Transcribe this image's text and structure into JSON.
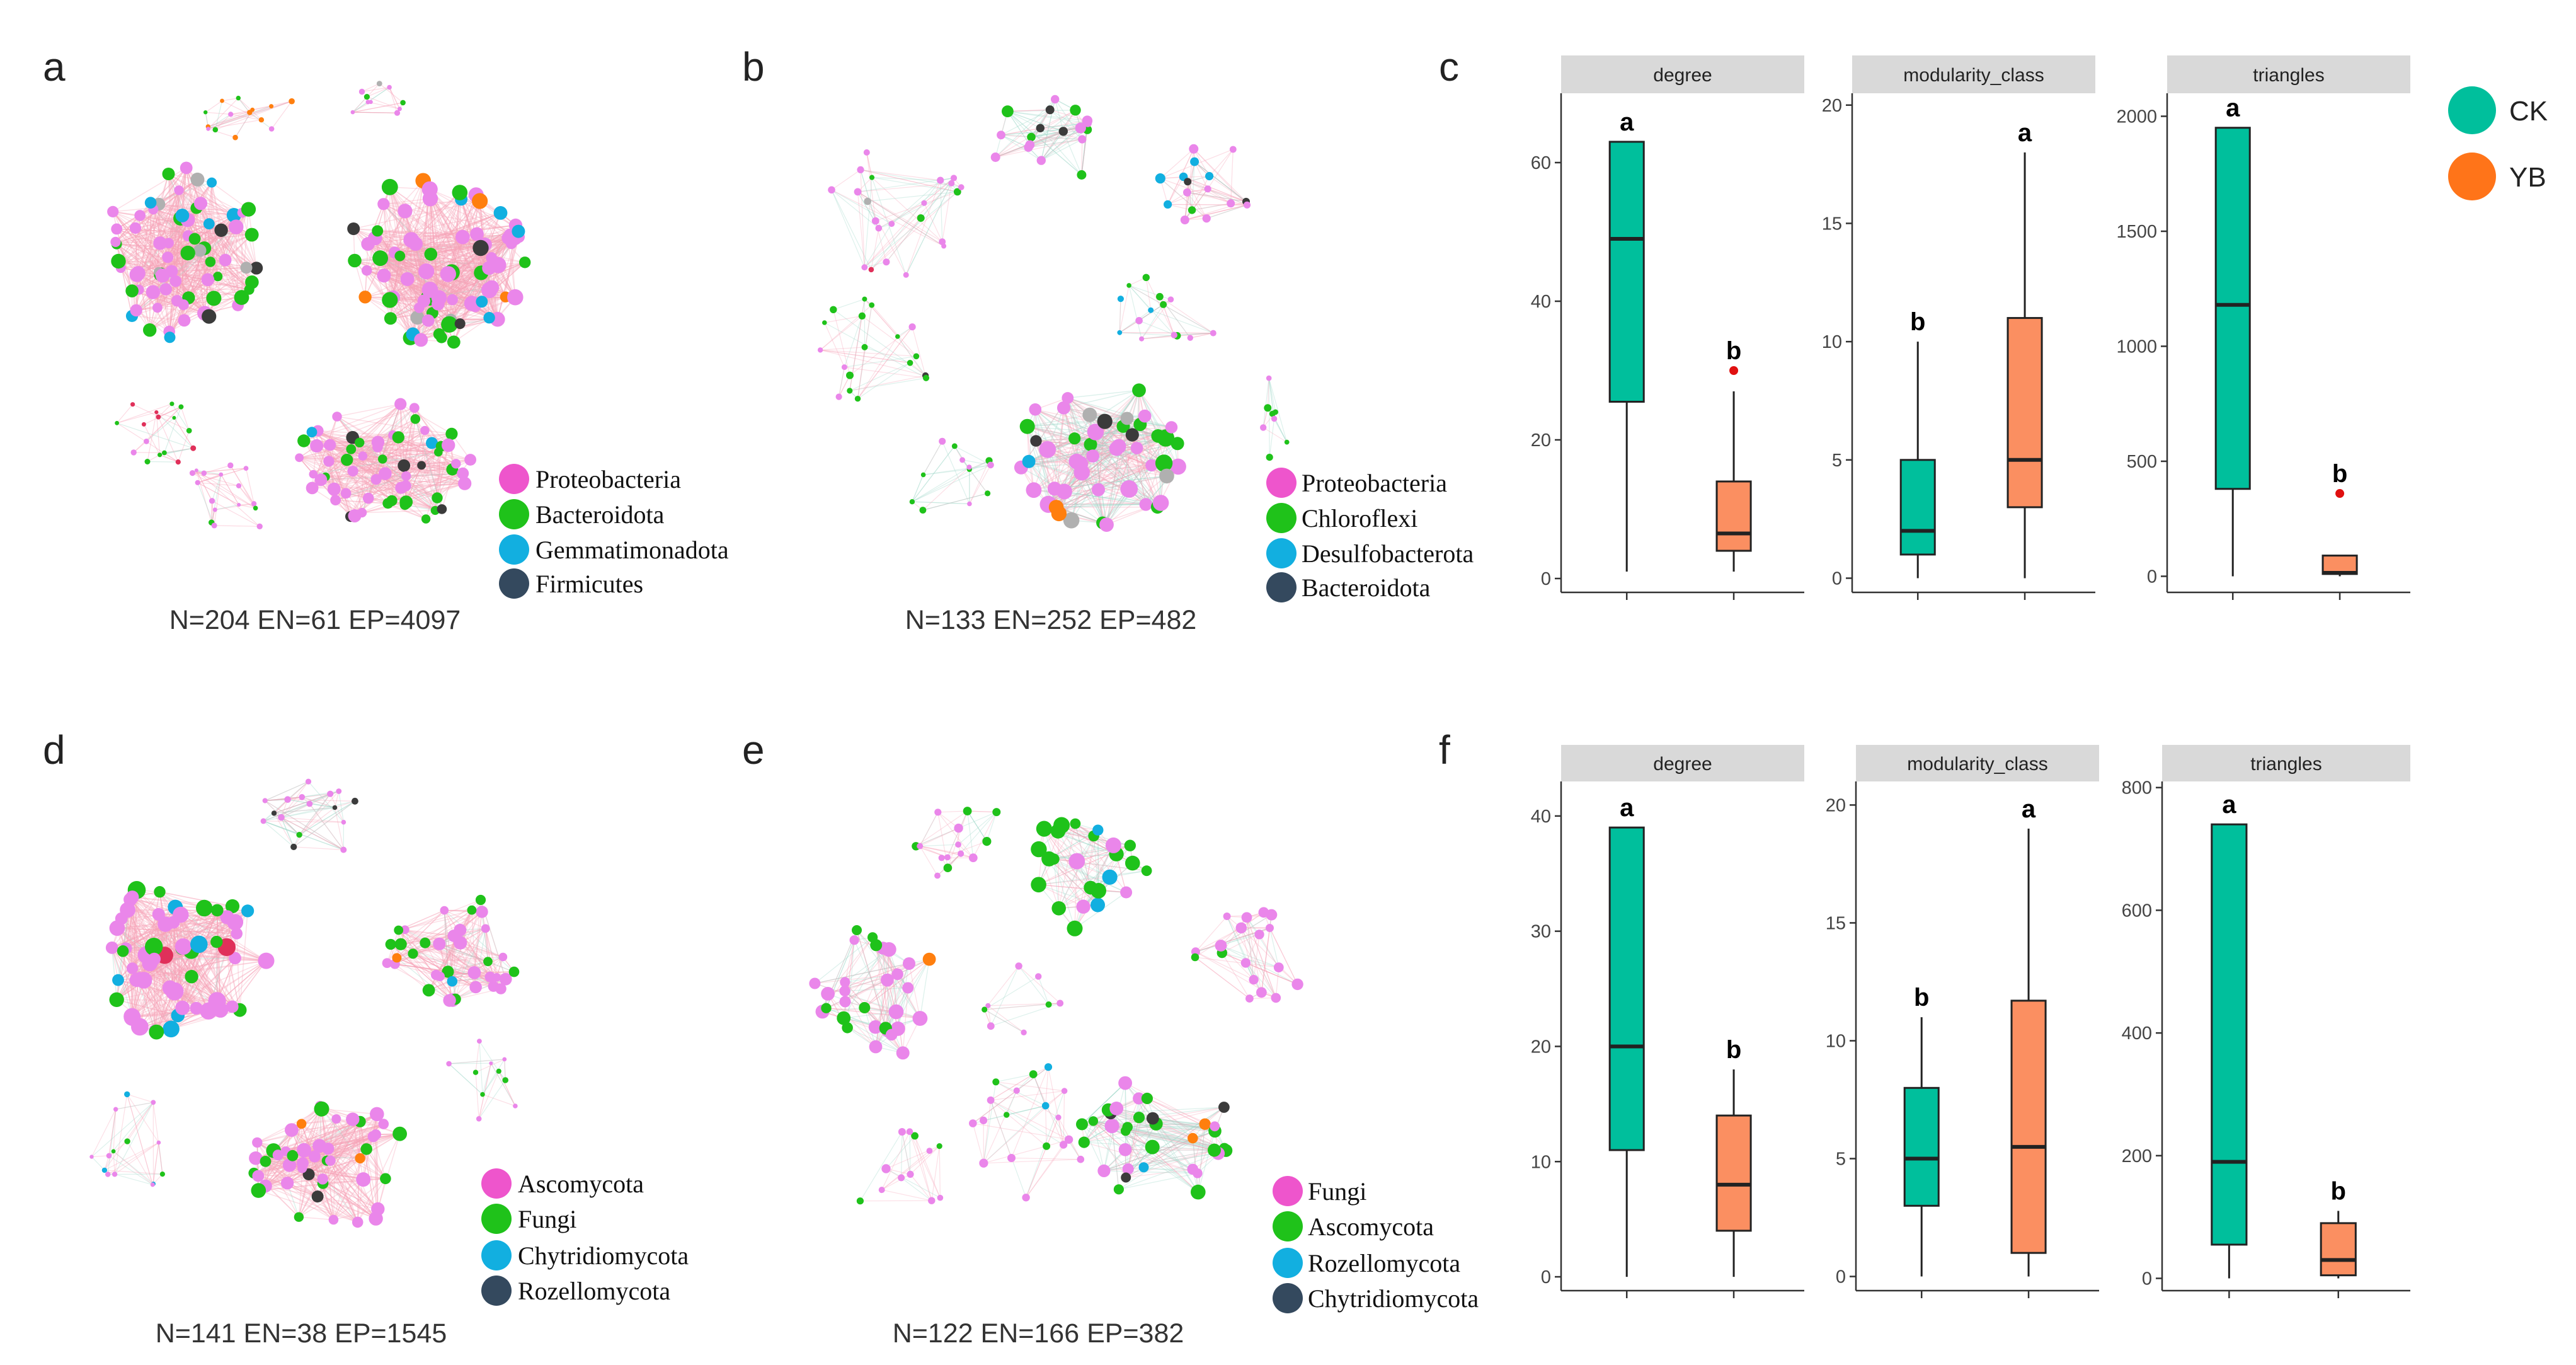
{
  "panel_labels": {
    "a": "a",
    "b": "b",
    "c": "c",
    "d": "d",
    "e": "e",
    "f": "f"
  },
  "colors": {
    "pink": "#ee55cc",
    "green": "#1fc21a",
    "cyan": "#12afe0",
    "navy": "#34495e",
    "ck": "#00bf9c",
    "yb": "#fb8f61",
    "edge_pink": "#f7a3b8",
    "edge_teal": "#9fd8c8",
    "node_pink": "#ea86ea",
    "dark": "#3b3b3b",
    "gray": "#b0b0b0",
    "orange": "#ff7f0e",
    "red": "#e0305a"
  },
  "networks": {
    "a": {
      "stat": "N=204 EN=61 EP=4097",
      "legend": [
        "Proteobacteria",
        "Bacteroidota",
        "Gemmatimonadota",
        "Firmicutes"
      ]
    },
    "b": {
      "stat": "N=133 EN=252 EP=482",
      "legend": [
        "Proteobacteria",
        "Chloroflexi",
        "Desulfobacterota",
        "Bacteroidota"
      ]
    },
    "d": {
      "stat": "N=141 EN=38 EP=1545",
      "legend": [
        "Ascomycota",
        "Fungi",
        "Chytridiomycota",
        "Rozellomycota"
      ]
    },
    "e": {
      "stat": "N=122 EN=166 EP=382",
      "legend": [
        "Fungi",
        "Ascomycota",
        "Rozellomycota",
        "Chytridiomycota"
      ]
    }
  },
  "group_legend": [
    {
      "label": "CK",
      "color": "#00bf9c"
    },
    {
      "label": "YB",
      "color": "#ff7419"
    }
  ],
  "chart_data": [
    {
      "type": "boxplot",
      "panel": "c",
      "title": "degree",
      "ylim": [
        0,
        70
      ],
      "yticks": [
        "0",
        "20",
        "40",
        "60"
      ],
      "ytick_values": [
        0,
        20,
        40,
        60
      ],
      "groups": [
        {
          "name": "CK",
          "whisker_low": 1,
          "q1": 25.5,
          "median": 49,
          "q3": 63,
          "whisker_high": 63,
          "outliers": [],
          "sig": "a"
        },
        {
          "name": "YB",
          "whisker_low": 1,
          "q1": 4,
          "median": 6.5,
          "q3": 14,
          "whisker_high": 27,
          "outliers": [
            30
          ],
          "sig": "b"
        }
      ]
    },
    {
      "type": "boxplot",
      "panel": "c",
      "title": "modularity_class",
      "ylim": [
        0,
        20
      ],
      "yticks": [
        "0",
        "5",
        "10",
        "15",
        "20"
      ],
      "ytick_values": [
        0,
        5,
        10,
        15,
        20
      ],
      "groups": [
        {
          "name": "CK",
          "whisker_low": 0,
          "q1": 1,
          "median": 2,
          "q3": 5,
          "whisker_high": 10,
          "outliers": [],
          "sig": "b"
        },
        {
          "name": "YB",
          "whisker_low": 0,
          "q1": 3,
          "median": 5,
          "q3": 11,
          "whisker_high": 18,
          "outliers": [],
          "sig": "a"
        }
      ]
    },
    {
      "type": "boxplot",
      "panel": "c",
      "title": "triangles",
      "ylim": [
        0,
        2100
      ],
      "yticks": [
        "0",
        "500",
        "1000",
        "1500",
        "2000"
      ],
      "ytick_values": [
        0,
        500,
        1000,
        1500,
        2000
      ],
      "groups": [
        {
          "name": "CK",
          "whisker_low": 0,
          "q1": 380,
          "median": 1180,
          "q3": 1950,
          "whisker_high": 1950,
          "outliers": [],
          "sig": "a"
        },
        {
          "name": "YB",
          "whisker_low": 0,
          "q1": 10,
          "median": 15,
          "q3": 90,
          "whisker_high": 90,
          "outliers": [
            360
          ],
          "sig": "b"
        }
      ]
    },
    {
      "type": "boxplot",
      "panel": "f",
      "title": "degree",
      "ylim": [
        0,
        43
      ],
      "yticks": [
        "0",
        "10",
        "20",
        "30",
        "40"
      ],
      "ytick_values": [
        0,
        10,
        20,
        30,
        40
      ],
      "groups": [
        {
          "name": "CK",
          "whisker_low": 0,
          "q1": 11,
          "median": 20,
          "q3": 39,
          "whisker_high": 39,
          "outliers": [],
          "sig": "a"
        },
        {
          "name": "YB",
          "whisker_low": 0,
          "q1": 4,
          "median": 8,
          "q3": 14,
          "whisker_high": 18,
          "outliers": [],
          "sig": "b"
        }
      ]
    },
    {
      "type": "boxplot",
      "panel": "f",
      "title": "modularity_class",
      "ylim": [
        0,
        21
      ],
      "yticks": [
        "0",
        "5",
        "10",
        "15",
        "20"
      ],
      "ytick_values": [
        0,
        5,
        10,
        15,
        20
      ],
      "groups": [
        {
          "name": "CK",
          "whisker_low": 0,
          "q1": 3,
          "median": 5,
          "q3": 8,
          "whisker_high": 11,
          "outliers": [],
          "sig": "b"
        },
        {
          "name": "YB",
          "whisker_low": 0,
          "q1": 1,
          "median": 5.5,
          "q3": 11.7,
          "whisker_high": 19,
          "outliers": [],
          "sig": "a"
        }
      ]
    },
    {
      "type": "boxplot",
      "panel": "f",
      "title": "triangles",
      "ylim": [
        0,
        810
      ],
      "yticks": [
        "0",
        "200",
        "400",
        "600",
        "800"
      ],
      "ytick_values": [
        0,
        200,
        400,
        600,
        800
      ],
      "groups": [
        {
          "name": "CK",
          "whisker_low": 0,
          "q1": 55,
          "median": 190,
          "q3": 740,
          "whisker_high": 740,
          "outliers": [],
          "sig": "a"
        },
        {
          "name": "YB",
          "whisker_low": 0,
          "q1": 5,
          "median": 30,
          "q3": 90,
          "whisker_high": 110,
          "outliers": [],
          "sig": "b"
        }
      ]
    }
  ]
}
